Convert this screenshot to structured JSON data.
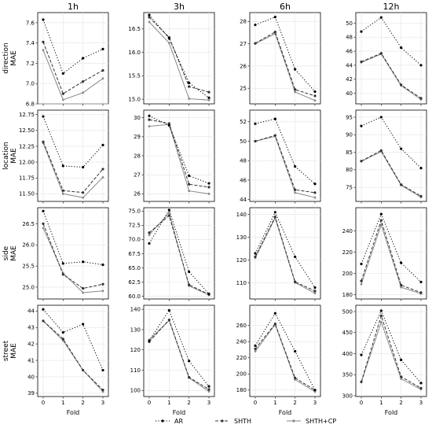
{
  "columns": [
    "1h",
    "3h",
    "6h",
    "12h"
  ],
  "rows": [
    {
      "label_top": "direction",
      "label_bottom": "MAE"
    },
    {
      "label_top": "location",
      "label_bottom": "MAE"
    },
    {
      "label_top": "side",
      "label_bottom": "MAE"
    },
    {
      "label_top": "street",
      "label_bottom": "MAE"
    }
  ],
  "xlabel": "Fold",
  "xticks": [
    0,
    1,
    2,
    3
  ],
  "legend": {
    "placement": "bottom",
    "entries": [
      {
        "name": "AR",
        "style": "dotted",
        "color": "#000000"
      },
      {
        "name": "SHTH",
        "style": "dashed",
        "color": "#333333"
      },
      {
        "name": "SHTH+CP",
        "style": "solid",
        "color": "#888888"
      }
    ]
  },
  "chart_data": [
    {
      "type": "line",
      "row": "direction",
      "column": "1h",
      "x": [
        0,
        1,
        2,
        3
      ],
      "ylim": [
        6.8,
        7.7
      ],
      "yticks": [
        "6.8",
        "7.0",
        "7.2",
        "7.4",
        "7.6"
      ],
      "grid": true,
      "series": [
        {
          "name": "AR",
          "values": [
            7.63,
            7.1,
            7.25,
            7.34
          ]
        },
        {
          "name": "SHTH",
          "values": [
            7.41,
            6.9,
            7.02,
            7.13
          ]
        },
        {
          "name": "SHTH+CP",
          "values": [
            7.33,
            6.84,
            6.91,
            7.05
          ]
        }
      ]
    },
    {
      "type": "line",
      "row": "direction",
      "column": "3h",
      "x": [
        0,
        1,
        2,
        3
      ],
      "ylim": [
        14.9,
        16.85
      ],
      "yticks": [
        "15.0",
        "15.5",
        "16.0",
        "16.5"
      ],
      "grid": true,
      "series": [
        {
          "name": "AR",
          "values": [
            16.8,
            16.3,
            15.35,
            15.03
          ]
        },
        {
          "name": "SHTH",
          "values": [
            16.75,
            16.32,
            15.27,
            15.15
          ]
        },
        {
          "name": "SHTH+CP",
          "values": [
            16.65,
            16.2,
            15.01,
            14.98
          ]
        }
      ]
    },
    {
      "type": "line",
      "row": "direction",
      "column": "6h",
      "x": [
        0,
        1,
        2,
        3
      ],
      "ylim": [
        24.3,
        28.4
      ],
      "yticks": [
        "25",
        "26",
        "27",
        "28"
      ],
      "grid": true,
      "series": [
        {
          "name": "AR",
          "values": [
            27.85,
            28.2,
            25.85,
            24.85
          ]
        },
        {
          "name": "SHTH",
          "values": [
            27.02,
            27.53,
            24.94,
            24.66
          ]
        },
        {
          "name": "SHTH+CP",
          "values": [
            27.0,
            27.45,
            24.83,
            24.45
          ]
        }
      ]
    },
    {
      "type": "line",
      "row": "direction",
      "column": "12h",
      "x": [
        0,
        1,
        2,
        3
      ],
      "ylim": [
        38.5,
        51.5
      ],
      "yticks": [
        "40",
        "42",
        "44",
        "46",
        "48",
        "50"
      ],
      "grid": true,
      "series": [
        {
          "name": "AR",
          "values": [
            48.8,
            50.8,
            46.5,
            44.0
          ]
        },
        {
          "name": "SHTH",
          "values": [
            44.5,
            45.7,
            41.2,
            39.3
          ]
        },
        {
          "name": "SHTH+CP",
          "values": [
            44.4,
            45.6,
            41.1,
            39.1
          ]
        }
      ]
    },
    {
      "type": "line",
      "row": "location",
      "column": "1h",
      "x": [
        0,
        1,
        2,
        3
      ],
      "ylim": [
        11.38,
        12.82
      ],
      "yticks": [
        "11.50",
        "11.75",
        "12.00",
        "12.25",
        "12.50",
        "12.75"
      ],
      "grid": true,
      "series": [
        {
          "name": "AR",
          "values": [
            12.72,
            11.94,
            11.92,
            12.27
          ]
        },
        {
          "name": "SHTH",
          "values": [
            12.32,
            11.55,
            11.52,
            11.89
          ]
        },
        {
          "name": "SHTH+CP",
          "values": [
            12.3,
            11.5,
            11.44,
            11.76
          ]
        }
      ]
    },
    {
      "type": "line",
      "row": "location",
      "column": "3h",
      "x": [
        0,
        1,
        2,
        3
      ],
      "ylim": [
        25.6,
        30.4
      ],
      "yticks": [
        "26",
        "27",
        "28",
        "29",
        "30"
      ],
      "grid": true,
      "series": [
        {
          "name": "AR",
          "values": [
            30.1,
            29.6,
            26.95,
            26.55
          ]
        },
        {
          "name": "SHTH",
          "values": [
            29.9,
            29.7,
            26.5,
            26.35
          ]
        },
        {
          "name": "SHTH+CP",
          "values": [
            29.55,
            29.65,
            26.15,
            26.0
          ]
        }
      ]
    },
    {
      "type": "line",
      "row": "location",
      "column": "6h",
      "x": [
        0,
        1,
        2,
        3
      ],
      "ylim": [
        43.8,
        53.2
      ],
      "yticks": [
        "44",
        "46",
        "48",
        "50",
        "52"
      ],
      "grid": true,
      "series": [
        {
          "name": "AR",
          "values": [
            51.8,
            52.3,
            47.4,
            45.6
          ]
        },
        {
          "name": "SHTH",
          "values": [
            50.0,
            50.6,
            45.0,
            44.7
          ]
        },
        {
          "name": "SHTH+CP",
          "values": [
            50.0,
            50.5,
            44.7,
            44.2
          ]
        }
      ]
    },
    {
      "type": "line",
      "row": "location",
      "column": "12h",
      "x": [
        0,
        1,
        2,
        3
      ],
      "ylim": [
        71,
        97
      ],
      "yticks": [
        "75",
        "80",
        "85",
        "90",
        "95"
      ],
      "grid": true,
      "series": [
        {
          "name": "AR",
          "values": [
            92.5,
            95.0,
            86.0,
            80.5
          ]
        },
        {
          "name": "SHTH",
          "values": [
            82.5,
            85.5,
            75.8,
            72.5
          ]
        },
        {
          "name": "SHTH+CP",
          "values": [
            82.4,
            85.2,
            75.6,
            72.2
          ]
        }
      ]
    },
    {
      "type": "line",
      "row": "side",
      "column": "1h",
      "x": [
        0,
        1,
        2,
        3
      ],
      "ylim": [
        24.72,
        26.88
      ],
      "yticks": [
        "25.0",
        "25.5",
        "26.0",
        "26.5"
      ],
      "grid": true,
      "series": [
        {
          "name": "AR",
          "values": [
            26.8,
            25.56,
            25.6,
            25.53
          ]
        },
        {
          "name": "SHTH",
          "values": [
            26.5,
            25.3,
            24.97,
            25.07
          ]
        },
        {
          "name": "SHTH+CP",
          "values": [
            26.4,
            25.33,
            24.87,
            24.91
          ]
        }
      ]
    },
    {
      "type": "line",
      "row": "side",
      "column": "3h",
      "x": [
        0,
        1,
        2,
        3
      ],
      "ylim": [
        59.5,
        75.6
      ],
      "yticks": [
        "60.0",
        "62.5",
        "65.0",
        "67.5",
        "70.0",
        "72.5",
        "75.0"
      ],
      "grid": true,
      "series": [
        {
          "name": "AR",
          "values": [
            69.3,
            75.2,
            64.3,
            60.4
          ]
        },
        {
          "name": "SHTH",
          "values": [
            71.2,
            74.2,
            62.0,
            60.3
          ]
        },
        {
          "name": "SHTH+CP",
          "values": [
            70.8,
            74.7,
            61.8,
            60.2
          ]
        }
      ]
    },
    {
      "type": "line",
      "row": "side",
      "column": "6h",
      "x": [
        0,
        1,
        2,
        3
      ],
      "ylim": [
        103,
        143
      ],
      "yticks": [
        "110",
        "120",
        "130",
        "140"
      ],
      "grid": true,
      "series": [
        {
          "name": "AR",
          "values": [
            123.0,
            141.0,
            121.5,
            108.0
          ]
        },
        {
          "name": "SHTH",
          "values": [
            121.5,
            139.0,
            110.5,
            106.5
          ]
        },
        {
          "name": "SHTH+CP",
          "values": [
            121.0,
            138.5,
            110.2,
            105.5
          ]
        }
      ]
    },
    {
      "type": "line",
      "row": "side",
      "column": "12h",
      "x": [
        0,
        1,
        2,
        3
      ],
      "ylim": [
        176,
        262
      ],
      "yticks": [
        "180",
        "200",
        "220",
        "240"
      ],
      "grid": true,
      "series": [
        {
          "name": "AR",
          "values": [
            209.0,
            256.0,
            210.0,
            192.0
          ]
        },
        {
          "name": "SHTH",
          "values": [
            193.0,
            250.0,
            189.0,
            182.0
          ]
        },
        {
          "name": "SHTH+CP",
          "values": [
            190.0,
            246.0,
            187.0,
            181.0
          ]
        }
      ]
    },
    {
      "type": "line",
      "row": "street",
      "column": "1h",
      "x": [
        0,
        1,
        2,
        3
      ],
      "ylim": [
        38.8,
        44.35
      ],
      "yticks": [
        "39",
        "40",
        "41",
        "42",
        "43",
        "44"
      ],
      "grid": true,
      "series": [
        {
          "name": "AR",
          "values": [
            44.1,
            42.7,
            43.2,
            40.4
          ]
        },
        {
          "name": "SHTH",
          "values": [
            43.4,
            42.3,
            40.4,
            39.2
          ]
        },
        {
          "name": "SHTH+CP",
          "values": [
            43.4,
            42.2,
            40.4,
            39.1
          ]
        }
      ]
    },
    {
      "type": "line",
      "row": "street",
      "column": "3h",
      "x": [
        0,
        1,
        2,
        3
      ],
      "ylim": [
        97,
        142
      ],
      "yticks": [
        "100",
        "110",
        "120",
        "130",
        "140"
      ],
      "grid": true,
      "series": [
        {
          "name": "AR",
          "values": [
            124.5,
            139.5,
            114.5,
            102.0
          ]
        },
        {
          "name": "SHTH",
          "values": [
            124.0,
            134.8,
            106.5,
            100.5
          ]
        },
        {
          "name": "SHTH+CP",
          "values": [
            125.0,
            134.5,
            106.2,
            99.5
          ]
        }
      ]
    },
    {
      "type": "line",
      "row": "street",
      "column": "6h",
      "x": [
        0,
        1,
        2,
        3
      ],
      "ylim": [
        172,
        285
      ],
      "yticks": [
        "180",
        "200",
        "220",
        "240",
        "260"
      ],
      "grid": true,
      "series": [
        {
          "name": "AR",
          "values": [
            235.0,
            275.0,
            228.0,
            180.0
          ]
        },
        {
          "name": "SHTH",
          "values": [
            231.0,
            262.0,
            195.0,
            180.0
          ]
        },
        {
          "name": "SHTH+CP",
          "values": [
            228.0,
            261.0,
            193.0,
            178.0
          ]
        }
      ]
    },
    {
      "type": "line",
      "row": "street",
      "column": "12h",
      "x": [
        0,
        1,
        2,
        3
      ],
      "ylim": [
        298,
        515
      ],
      "yticks": [
        "300",
        "350",
        "400",
        "450",
        "500"
      ],
      "grid": true,
      "series": [
        {
          "name": "AR",
          "values": [
            397.0,
            502.0,
            385.0,
            330.0
          ]
        },
        {
          "name": "SHTH",
          "values": [
            333.0,
            490.0,
            345.0,
            318.0
          ]
        },
        {
          "name": "SHTH+CP",
          "values": [
            332.0,
            475.0,
            340.0,
            315.0
          ]
        }
      ]
    }
  ]
}
